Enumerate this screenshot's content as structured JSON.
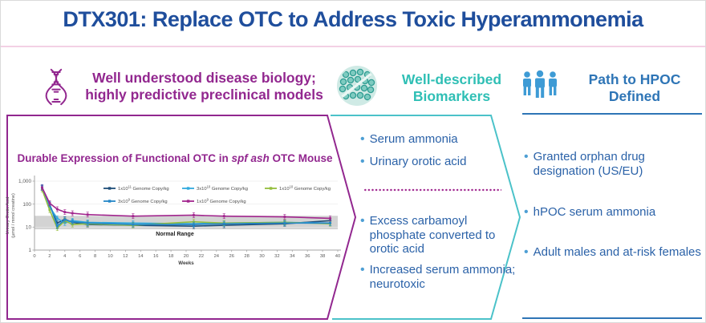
{
  "slide": {
    "title": "DTX301: Replace OTC to Address Toxic Hyperammonemia"
  },
  "pillars": {
    "left": {
      "heading_line1": "Well understood disease biology;",
      "heading_line2": "highly predictive preclinical models"
    },
    "middle": {
      "heading_line1": "Well-described",
      "heading_line2": "Biomarkers",
      "bullets_top": [
        "Serum ammonia",
        "Urinary orotic acid"
      ],
      "bullets_bottom": [
        "Excess carbamoyl phosphate converted to orotic acid",
        "Increased serum ammonia; neurotoxic"
      ]
    },
    "right": {
      "heading_line1": "Path to HPOC",
      "heading_line2": "Defined",
      "bullets": [
        "Granted orphan drug designation (US/EU)",
        "hPOC serum ammonia",
        "Adult males and at-risk females"
      ]
    }
  },
  "chart_data": {
    "type": "line",
    "title": {
      "prefix": "Durable Expression of Functional OTC in ",
      "italic": "spf ash",
      "suffix": " OTC Mouse"
    },
    "xlabel": "Weeks",
    "ylabel": [
      "Urinary Orotic Acid",
      "(µmol / mmol creatine)"
    ],
    "y_scale": "log",
    "ylim": [
      1,
      1000
    ],
    "xlim": [
      0,
      40
    ],
    "y_tick_values": [
      1000,
      100,
      10,
      1
    ],
    "y_tick_labels": [
      "1,000",
      "100",
      "10",
      "1"
    ],
    "x_ticks": [
      0,
      2,
      4,
      6,
      8,
      10,
      12,
      14,
      16,
      18,
      20,
      22,
      24,
      26,
      28,
      30,
      32,
      34,
      36,
      38,
      40
    ],
    "normal_range": {
      "label": "Normal Range",
      "low": 8,
      "high": 31
    },
    "legend_position": "top-inside",
    "x": [
      1,
      2,
      3,
      4,
      5,
      7,
      13,
      21,
      25,
      33,
      39
    ],
    "series": [
      {
        "name_base": "1x10",
        "name_exp": "11",
        "name_rest": " Genome Copy/kg",
        "color": "#1F4E79",
        "values": [
          500,
          95,
          15,
          22,
          16,
          13,
          12,
          11,
          12,
          14,
          19
        ]
      },
      {
        "name_base": "3x10",
        "name_exp": "10",
        "name_rest": " Genome Copy/kg",
        "color": "#31AADE",
        "values": [
          560,
          75,
          24,
          15,
          19,
          16,
          15,
          14,
          15,
          16,
          15
        ]
      },
      {
        "name_base": "1x10",
        "name_exp": "10",
        "name_rest": " Genome Copy/kg",
        "color": "#94BE3D",
        "values": [
          430,
          55,
          9,
          19,
          13,
          14,
          12,
          17,
          15,
          16,
          14
        ]
      },
      {
        "name_base": "3x10",
        "name_exp": "9",
        "name_rest": " Genome Copy/kg",
        "color": "#2586C7",
        "values": [
          510,
          100,
          11,
          21,
          17,
          15,
          13,
          13,
          14,
          15,
          15
        ]
      },
      {
        "name_base": "1x10",
        "name_exp": "9",
        "name_rest": " Genome Copy/kg",
        "color": "#A2268E",
        "values": [
          530,
          110,
          60,
          45,
          40,
          35,
          30,
          33,
          30,
          28,
          24
        ]
      }
    ]
  },
  "colors": {
    "title_blue": "#1F4E9C",
    "purple": "#92278F",
    "teal_text": "#2FBFB5",
    "teal_border": "#4BC2C9",
    "right_blue": "#2E75B6",
    "bullet_text": "#2B62A8",
    "bullet_dot": "#4E9FD4",
    "pink_rule": "#F3D1E5",
    "normal_range_band": "#D3D3D3"
  }
}
